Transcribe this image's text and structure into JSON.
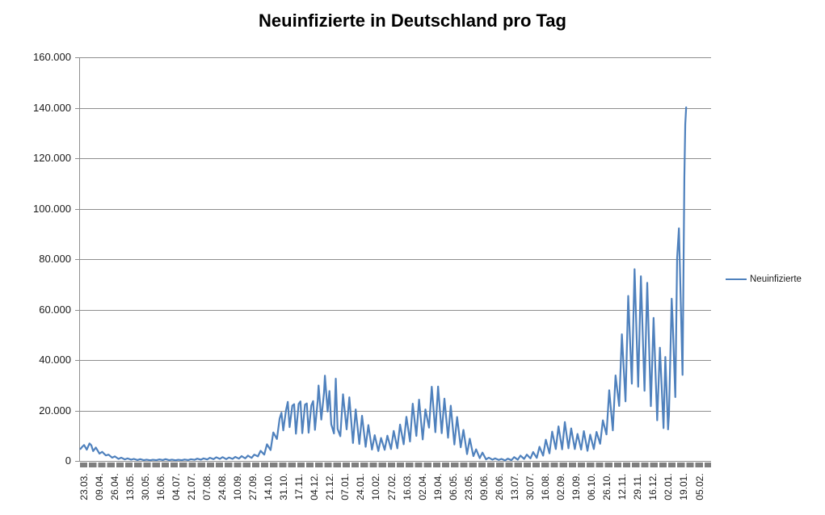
{
  "chart_data": {
    "type": "line",
    "title": "Neuinfizierte in Deutschland pro Tag",
    "legend": "Neuinfizierte",
    "legend_position": "right",
    "grid": true,
    "colors": {
      "line": "#4F81BD",
      "gridline": "#8E8E8E",
      "axis": "#8E8E8E",
      "tick_band": "#7F7F7F",
      "title_text": "#000000",
      "label_text": "#1A1A1A",
      "background": "#FFFFFF"
    },
    "y_axis": {
      "min": 0,
      "max": 160000,
      "step": 20000,
      "tick_labels": [
        "0",
        "20.000",
        "40.000",
        "60.000",
        "80.000",
        "100.000",
        "120.000",
        "140.000",
        "160.000"
      ]
    },
    "x_axis": {
      "unit": "day index from first category (daily data, 23.03.2020 – 05.02.2022)",
      "label_interval_slots": 17,
      "total_slots": 697,
      "tick_labels": [
        "23.03.",
        "09.04.",
        "26.04.",
        "13.05.",
        "30.05.",
        "16.06.",
        "04.07.",
        "21.07.",
        "07.08.",
        "24.08.",
        "10.09.",
        "27.09.",
        "14.10.",
        "31.10.",
        "17.11.",
        "04.12.",
        "21.12.",
        "07.01.",
        "24.01.",
        "10.02.",
        "27.02.",
        "16.03.",
        "02.04.",
        "19.04.",
        "06.05.",
        "23.05.",
        "09.06.",
        "26.06.",
        "13.07.",
        "30.07.",
        "16.08.",
        "02.09.",
        "19.09.",
        "06.10.",
        "26.10.",
        "12.11.",
        "29.11.",
        "16.12.",
        "02.01.",
        "19.01.",
        "05.02."
      ]
    },
    "series": [
      {
        "name": "Neuinfizierte",
        "points": [
          [
            0,
            4764
          ],
          [
            2,
            5600
          ],
          [
            4,
            6294
          ],
          [
            7,
            4450
          ],
          [
            10,
            6930
          ],
          [
            12,
            6200
          ],
          [
            14,
            3900
          ],
          [
            17,
            5300
          ],
          [
            21,
            2900
          ],
          [
            24,
            3600
          ],
          [
            28,
            2200
          ],
          [
            31,
            2500
          ],
          [
            35,
            1300
          ],
          [
            38,
            1800
          ],
          [
            42,
            800
          ],
          [
            45,
            1300
          ],
          [
            49,
            600
          ],
          [
            52,
            1000
          ],
          [
            56,
            500
          ],
          [
            59,
            800
          ],
          [
            63,
            350
          ],
          [
            66,
            700
          ],
          [
            70,
            300
          ],
          [
            73,
            500
          ],
          [
            77,
            250
          ],
          [
            80,
            450
          ],
          [
            84,
            300
          ],
          [
            87,
            600
          ],
          [
            91,
            350
          ],
          [
            94,
            700
          ],
          [
            98,
            300
          ],
          [
            101,
            500
          ],
          [
            105,
            250
          ],
          [
            108,
            450
          ],
          [
            112,
            300
          ],
          [
            115,
            550
          ],
          [
            119,
            350
          ],
          [
            122,
            650
          ],
          [
            126,
            450
          ],
          [
            129,
            900
          ],
          [
            133,
            500
          ],
          [
            136,
            1000
          ],
          [
            140,
            600
          ],
          [
            143,
            1250
          ],
          [
            147,
            700
          ],
          [
            150,
            1450
          ],
          [
            154,
            800
          ],
          [
            157,
            1500
          ],
          [
            161,
            700
          ],
          [
            164,
            1350
          ],
          [
            168,
            800
          ],
          [
            171,
            1600
          ],
          [
            175,
            900
          ],
          [
            178,
            1900
          ],
          [
            182,
            1000
          ],
          [
            185,
            2100
          ],
          [
            189,
            1200
          ],
          [
            192,
            2500
          ],
          [
            196,
            1800
          ],
          [
            199,
            4000
          ],
          [
            203,
            2500
          ],
          [
            206,
            6600
          ],
          [
            210,
            4300
          ],
          [
            213,
            11300
          ],
          [
            217,
            8700
          ],
          [
            220,
            16800
          ],
          [
            222,
            19100
          ],
          [
            224,
            12100
          ],
          [
            227,
            20000
          ],
          [
            229,
            23400
          ],
          [
            231,
            13400
          ],
          [
            234,
            21900
          ],
          [
            236,
            22500
          ],
          [
            238,
            10800
          ],
          [
            241,
            22600
          ],
          [
            243,
            23600
          ],
          [
            245,
            11000
          ],
          [
            248,
            22300
          ],
          [
            250,
            22800
          ],
          [
            252,
            11200
          ],
          [
            255,
            22000
          ],
          [
            257,
            23700
          ],
          [
            259,
            12300
          ],
          [
            262,
            23700
          ],
          [
            263,
            29900
          ],
          [
            266,
            16400
          ],
          [
            269,
            27000
          ],
          [
            270,
            33800
          ],
          [
            273,
            19600
          ],
          [
            275,
            27700
          ],
          [
            277,
            14500
          ],
          [
            280,
            10900
          ],
          [
            282,
            32600
          ],
          [
            284,
            12700
          ],
          [
            287,
            9800
          ],
          [
            290,
            26400
          ],
          [
            294,
            12500
          ],
          [
            297,
            25200
          ],
          [
            301,
            7100
          ],
          [
            304,
            20400
          ],
          [
            308,
            6700
          ],
          [
            311,
            17900
          ],
          [
            315,
            5600
          ],
          [
            318,
            14200
          ],
          [
            322,
            4500
          ],
          [
            325,
            10200
          ],
          [
            329,
            3900
          ],
          [
            332,
            9100
          ],
          [
            336,
            4400
          ],
          [
            339,
            10000
          ],
          [
            343,
            4700
          ],
          [
            346,
            11900
          ],
          [
            350,
            5000
          ],
          [
            353,
            14400
          ],
          [
            357,
            6600
          ],
          [
            360,
            17500
          ],
          [
            364,
            7700
          ],
          [
            367,
            22700
          ],
          [
            371,
            9900
          ],
          [
            374,
            24300
          ],
          [
            378,
            8500
          ],
          [
            381,
            20400
          ],
          [
            385,
            13200
          ],
          [
            388,
            29400
          ],
          [
            392,
            11400
          ],
          [
            395,
            29500
          ],
          [
            399,
            11000
          ],
          [
            402,
            24700
          ],
          [
            406,
            9200
          ],
          [
            409,
            21900
          ],
          [
            413,
            6500
          ],
          [
            416,
            17400
          ],
          [
            420,
            5400
          ],
          [
            423,
            12300
          ],
          [
            427,
            2700
          ],
          [
            430,
            8800
          ],
          [
            434,
            1900
          ],
          [
            437,
            4600
          ],
          [
            441,
            1100
          ],
          [
            444,
            3300
          ],
          [
            448,
            600
          ],
          [
            451,
            1300
          ],
          [
            455,
            500
          ],
          [
            458,
            1000
          ],
          [
            462,
            400
          ],
          [
            465,
            800
          ],
          [
            469,
            200
          ],
          [
            472,
            900
          ],
          [
            476,
            300
          ],
          [
            479,
            1500
          ],
          [
            483,
            500
          ],
          [
            486,
            2100
          ],
          [
            490,
            800
          ],
          [
            493,
            2500
          ],
          [
            497,
            1000
          ],
          [
            500,
            3500
          ],
          [
            504,
            1200
          ],
          [
            507,
            5600
          ],
          [
            511,
            2100
          ],
          [
            514,
            8400
          ],
          [
            518,
            3000
          ],
          [
            521,
            11600
          ],
          [
            525,
            4700
          ],
          [
            528,
            13700
          ],
          [
            532,
            4600
          ],
          [
            535,
            15400
          ],
          [
            539,
            5000
          ],
          [
            542,
            12900
          ],
          [
            546,
            4700
          ],
          [
            549,
            10700
          ],
          [
            553,
            4500
          ],
          [
            556,
            11800
          ],
          [
            560,
            4000
          ],
          [
            563,
            10400
          ],
          [
            567,
            4700
          ],
          [
            570,
            11500
          ],
          [
            574,
            6800
          ],
          [
            577,
            16100
          ],
          [
            581,
            10500
          ],
          [
            584,
            28000
          ],
          [
            588,
            12100
          ],
          [
            591,
            33900
          ],
          [
            595,
            21800
          ],
          [
            598,
            50200
          ],
          [
            602,
            23600
          ],
          [
            605,
            65400
          ],
          [
            609,
            30600
          ],
          [
            612,
            76000
          ],
          [
            616,
            29400
          ],
          [
            619,
            73200
          ],
          [
            623,
            27800
          ],
          [
            626,
            70600
          ],
          [
            630,
            21700
          ],
          [
            633,
            56700
          ],
          [
            637,
            16100
          ],
          [
            640,
            44900
          ],
          [
            644,
            13000
          ],
          [
            646,
            41200
          ],
          [
            649,
            12500
          ],
          [
            650,
            18500
          ],
          [
            653,
            64300
          ],
          [
            654,
            56300
          ],
          [
            657,
            25300
          ],
          [
            659,
            80400
          ],
          [
            661,
            92200
          ],
          [
            662,
            78000
          ],
          [
            665,
            34100
          ],
          [
            667,
            112300
          ],
          [
            668,
            133500
          ],
          [
            669,
            140160
          ]
        ]
      }
    ]
  }
}
